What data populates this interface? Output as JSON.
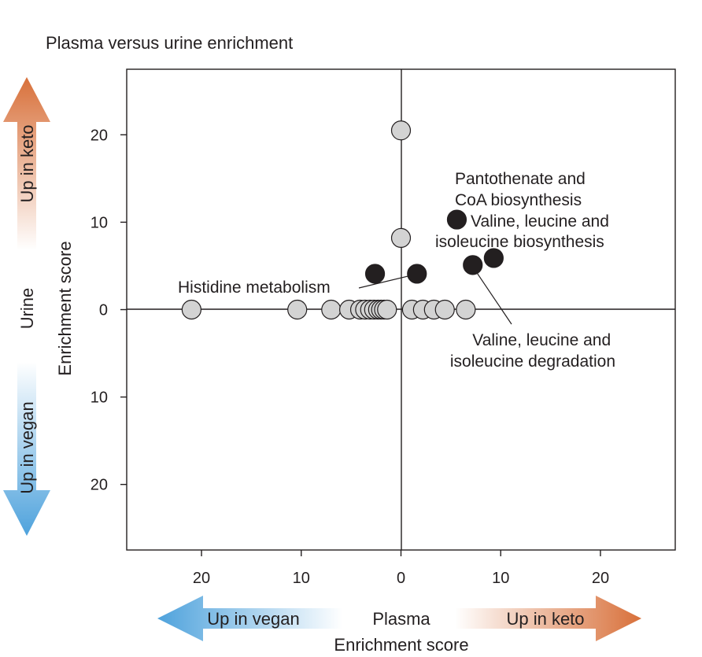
{
  "chart_data": {
    "type": "scatter",
    "title": "Plasma versus urine enrichment",
    "xlabel": "Enrichment score",
    "ylabel": "Enrichment score",
    "x_axis_name": "Plasma",
    "y_axis_name": "Urine",
    "xlim": [
      -27.5,
      27.5
    ],
    "ylim": [
      -27.5,
      27.5
    ],
    "x_ticks": [
      {
        "value": -20,
        "label": "20"
      },
      {
        "value": -10,
        "label": "10"
      },
      {
        "value": 0,
        "label": "0"
      },
      {
        "value": 10,
        "label": "10"
      },
      {
        "value": 20,
        "label": "20"
      }
    ],
    "y_ticks": [
      {
        "value": 20,
        "label": "20"
      },
      {
        "value": 10,
        "label": "10"
      },
      {
        "value": 0,
        "label": "0"
      },
      {
        "value": -10,
        "label": "10"
      },
      {
        "value": -20,
        "label": "20"
      }
    ],
    "grid": false,
    "zero_lines": true,
    "direction_labels": {
      "x_negative": "Up in vegan",
      "x_positive": "Up in keto",
      "y_positive": "Up in keto",
      "y_negative": "Up in vegan"
    },
    "series": [
      {
        "color": "#d3d3d3",
        "points": [
          {
            "x": -21.0,
            "y": 0
          },
          {
            "x": -10.4,
            "y": 0
          },
          {
            "x": -7.0,
            "y": 0
          },
          {
            "x": -5.2,
            "y": 0
          },
          {
            "x": -4.1,
            "y": 0
          },
          {
            "x": -3.6,
            "y": 0
          },
          {
            "x": -3.1,
            "y": 0
          },
          {
            "x": -2.7,
            "y": 0
          },
          {
            "x": -2.3,
            "y": 0
          },
          {
            "x": -2.0,
            "y": 0
          },
          {
            "x": -1.7,
            "y": 0
          },
          {
            "x": -1.4,
            "y": 0
          },
          {
            "x": 1.1,
            "y": 0
          },
          {
            "x": 2.2,
            "y": 0
          },
          {
            "x": 3.3,
            "y": 0
          },
          {
            "x": 4.4,
            "y": 0
          },
          {
            "x": 6.5,
            "y": 0
          },
          {
            "x": 0.0,
            "y": 20.5
          },
          {
            "x": 0.0,
            "y": 8.2
          }
        ]
      },
      {
        "color": "#231f20",
        "points": [
          {
            "x": -2.6,
            "y": 4.1
          },
          {
            "x": 1.6,
            "y": 4.1
          },
          {
            "x": 5.6,
            "y": 10.3
          },
          {
            "x": 7.2,
            "y": 5.1
          },
          {
            "x": 9.3,
            "y": 5.9
          }
        ]
      }
    ],
    "annotations": [
      {
        "lines": [
          "Pantothenate and",
          "CoA biosynthesis"
        ],
        "target": null
      },
      {
        "lines": [
          "Valine, leucine and",
          "isoleucine biosynthesis"
        ],
        "target": null
      },
      {
        "lines": [
          "Histidine metabolism"
        ],
        "target": [
          1.6,
          4.1
        ]
      },
      {
        "lines": [
          "Valine, leucine and",
          "isoleucine degradation"
        ],
        "target": [
          7.2,
          5.1
        ]
      }
    ]
  },
  "colors": {
    "keto_arrow": "#d8703a",
    "vegan_arrow": "#4ea2dc",
    "open_point": "#d3d3d3",
    "filled_point": "#231f20"
  }
}
